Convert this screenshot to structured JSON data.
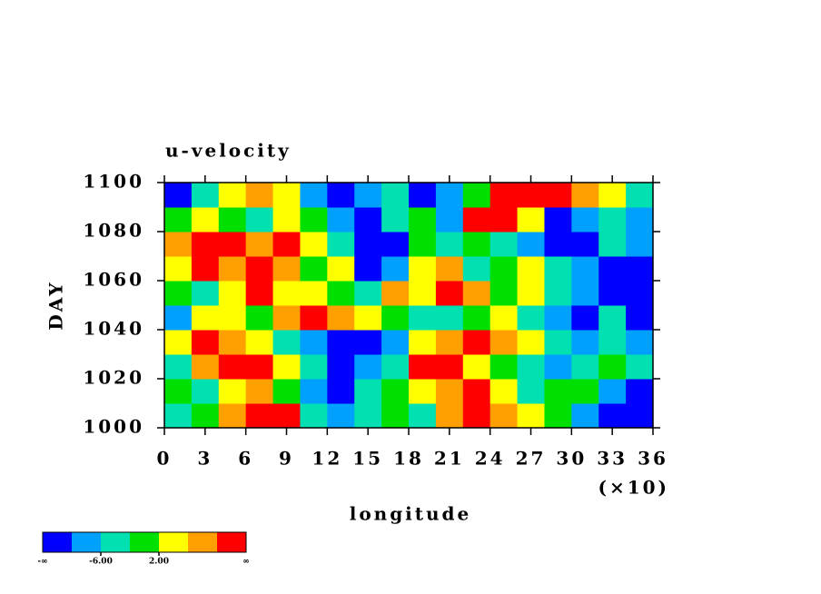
{
  "chart_data": {
    "type": "heatmap",
    "title": "u-velocity",
    "xlabel": "longitude",
    "ylabel": "DAY",
    "x_scale_note": "(×10)",
    "x": [
      10,
      30,
      50,
      70,
      90,
      110,
      130,
      150,
      170,
      190,
      210,
      230,
      250,
      270,
      290,
      310,
      330,
      350
    ],
    "y": [
      1005,
      1015,
      1025,
      1035,
      1045,
      1055,
      1065,
      1075,
      1085,
      1095
    ],
    "z": [
      [
        -4,
        0,
        8,
        12,
        12,
        -4,
        -8,
        -4,
        0,
        -4,
        8,
        12,
        8,
        4,
        0,
        -8,
        -12,
        -12
      ],
      [
        0,
        -4,
        4,
        8,
        0,
        -8,
        -12,
        -4,
        0,
        4,
        8,
        12,
        4,
        -4,
        0,
        0,
        -8,
        -12
      ],
      [
        -4,
        8,
        12,
        12,
        4,
        -4,
        -12,
        -8,
        -4,
        12,
        12,
        4,
        0,
        -4,
        -8,
        -4,
        0,
        -4
      ],
      [
        4,
        12,
        8,
        4,
        -4,
        -8,
        -12,
        -12,
        -8,
        4,
        8,
        12,
        8,
        4,
        -4,
        -8,
        -4,
        -8
      ],
      [
        -8,
        4,
        4,
        0,
        8,
        12,
        8,
        4,
        0,
        -4,
        -4,
        0,
        4,
        -4,
        -8,
        -12,
        -4,
        -12
      ],
      [
        0,
        -4,
        4,
        12,
        4,
        4,
        0,
        -4,
        8,
        4,
        12,
        8,
        0,
        4,
        -4,
        -8,
        -12,
        -12
      ],
      [
        4,
        12,
        8,
        12,
        8,
        0,
        4,
        -12,
        -8,
        4,
        8,
        -4,
        0,
        4,
        -4,
        -8,
        -12,
        -12
      ],
      [
        8,
        12,
        12,
        8,
        12,
        4,
        -4,
        -12,
        -12,
        0,
        -4,
        0,
        -4,
        -8,
        -12,
        -12,
        -4,
        -8
      ],
      [
        0,
        4,
        0,
        -4,
        4,
        0,
        -8,
        -12,
        -4,
        0,
        -8,
        12,
        12,
        4,
        -12,
        -8,
        -4,
        -8
      ],
      [
        -12,
        -4,
        4,
        8,
        4,
        -8,
        -12,
        -8,
        -4,
        -12,
        -8,
        0,
        12,
        12,
        12,
        8,
        4,
        -4
      ]
    ],
    "xlim": [
      0,
      360
    ],
    "ylim": [
      1000,
      1100
    ],
    "xticks": [
      {
        "value": 0,
        "label": "0"
      },
      {
        "value": 30,
        "label": "3"
      },
      {
        "value": 60,
        "label": "6"
      },
      {
        "value": 90,
        "label": "9"
      },
      {
        "value": 120,
        "label": "12"
      },
      {
        "value": 150,
        "label": "15"
      },
      {
        "value": 180,
        "label": "18"
      },
      {
        "value": 210,
        "label": "21"
      },
      {
        "value": 240,
        "label": "24"
      },
      {
        "value": 270,
        "label": "27"
      },
      {
        "value": 300,
        "label": "30"
      },
      {
        "value": 330,
        "label": "33"
      },
      {
        "value": 360,
        "label": "36"
      }
    ],
    "yticks": [
      1000,
      1020,
      1040,
      1060,
      1080,
      1100
    ],
    "levels": [
      -10,
      -6,
      -2,
      2,
      6,
      10
    ],
    "colors": [
      "#0000ff",
      "#00a0ff",
      "#00e0b0",
      "#00e000",
      "#ffff00",
      "#ffa000",
      "#ff0000"
    ],
    "colorbar_ticks": [
      {
        "value": -6,
        "label": "-6.00"
      },
      {
        "value": 2,
        "label": "2.00"
      }
    ],
    "colorbar_ends": [
      "-∞",
      "∞"
    ]
  }
}
